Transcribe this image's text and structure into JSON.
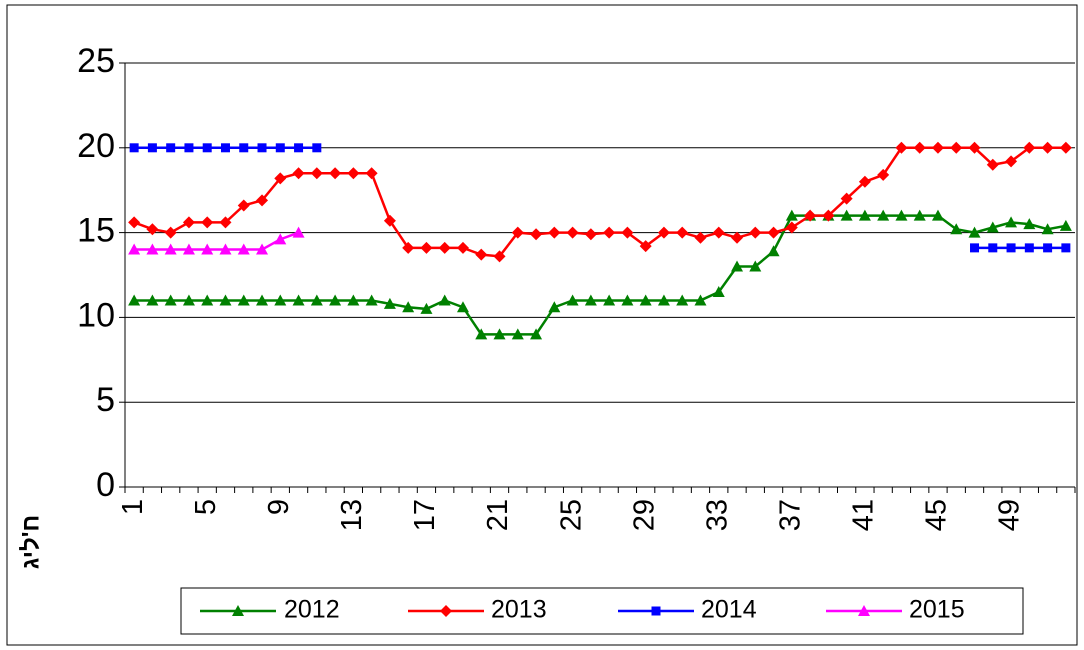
{
  "chart_data": {
    "type": "line",
    "y_label": "ח'ליג",
    "categories": [
      1,
      null,
      null,
      null,
      5,
      null,
      null,
      null,
      9,
      null,
      null,
      null,
      13,
      null,
      null,
      null,
      17,
      null,
      null,
      null,
      21,
      null,
      null,
      null,
      25,
      null,
      null,
      null,
      29,
      null,
      null,
      null,
      33,
      null,
      null,
      null,
      37,
      null,
      null,
      null,
      41,
      null,
      null,
      null,
      45,
      null,
      null,
      null,
      49,
      null,
      null,
      null
    ],
    "ylim": [
      0,
      25
    ],
    "yticks": [
      0,
      5,
      10,
      15,
      20,
      25
    ],
    "grid": true,
    "legend": "bottom",
    "series": [
      {
        "name": "2012",
        "color": "#008000",
        "marker": "triangle",
        "values": [
          11,
          11,
          11,
          11,
          11,
          11,
          11,
          11,
          11,
          11,
          11,
          11,
          11,
          11,
          10.8,
          10.6,
          10.5,
          11,
          10.6,
          9,
          9,
          9,
          9,
          10.6,
          11,
          11,
          11,
          11,
          11,
          11,
          11,
          11,
          11.5,
          13,
          13,
          13.9,
          16,
          16,
          16,
          16,
          16,
          16,
          16,
          16,
          16,
          15.2,
          15,
          15.3,
          15.6,
          15.5,
          15.2,
          15.4
        ]
      },
      {
        "name": "2013",
        "color": "#ff0000",
        "marker": "diamond",
        "values": [
          15.6,
          15.2,
          15,
          15.6,
          15.6,
          15.6,
          16.6,
          16.9,
          18.2,
          18.5,
          18.5,
          18.5,
          18.5,
          18.5,
          15.7,
          14.1,
          14.1,
          14.1,
          14.1,
          13.7,
          13.6,
          15,
          14.9,
          15,
          15,
          14.9,
          15,
          15,
          14.2,
          15,
          15,
          14.7,
          15,
          14.7,
          15,
          15,
          15.3,
          16,
          16,
          17,
          18,
          18.4,
          20,
          20,
          20,
          20,
          20,
          19,
          19.2,
          20,
          20,
          20
        ]
      },
      {
        "name": "2014",
        "color": "#0000ff",
        "marker": "square",
        "values": [
          20,
          20,
          20,
          20,
          20,
          20,
          20,
          20,
          20,
          20,
          20,
          null,
          null,
          null,
          null,
          null,
          null,
          null,
          null,
          null,
          null,
          null,
          null,
          null,
          null,
          null,
          null,
          null,
          null,
          null,
          null,
          null,
          null,
          null,
          null,
          null,
          null,
          null,
          null,
          null,
          null,
          null,
          null,
          null,
          null,
          null,
          14.1,
          14.1,
          14.1,
          14.1,
          14.1,
          14.1
        ]
      },
      {
        "name": "2015",
        "color": "#ff00ff",
        "marker": "triangle",
        "values": [
          14,
          14,
          14,
          14,
          14,
          14,
          14,
          14,
          14.6,
          15,
          null,
          null,
          null,
          null,
          null,
          null,
          null,
          null,
          null,
          null,
          null,
          null,
          null,
          null,
          null,
          null,
          null,
          null,
          null,
          null,
          null,
          null,
          null,
          null,
          null,
          null,
          null,
          null,
          null,
          null,
          null,
          null,
          null,
          null,
          null,
          null,
          null,
          null,
          null,
          null,
          null,
          null
        ]
      }
    ]
  }
}
